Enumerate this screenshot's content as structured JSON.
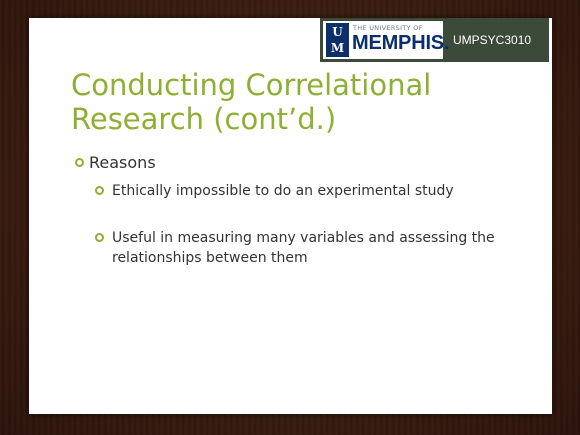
{
  "logo": {
    "um_top": "U",
    "um_bottom": "M",
    "university_of": "THE UNIVERSITY OF",
    "memphis": "MEMPHIS."
  },
  "course_code": "UMPSYC3010",
  "title": "Conducting Correlational Research (cont’d.)",
  "bullets": {
    "level1": "Reasons",
    "level2": [
      "Ethically impossible to do an experimental study",
      "Useful in measuring many variables and assessing the relationships between them"
    ]
  },
  "colors": {
    "accent_green": "#8db034",
    "memphis_blue": "#0c2e6a",
    "logo_bar": "#3c4a3a"
  }
}
